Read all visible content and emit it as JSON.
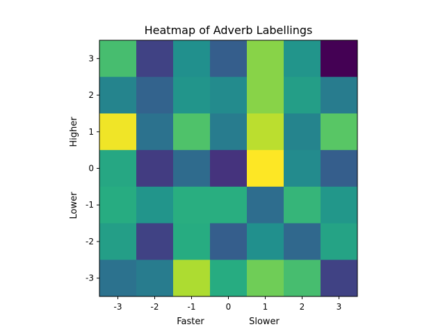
{
  "chart_data": {
    "type": "heatmap",
    "title": "Heatmap of Adverb Labellings",
    "xlabel_left": "Faster",
    "xlabel_right": "Slower",
    "ylabel_lower": "Lower",
    "ylabel_upper": "Higher",
    "colormap": "viridis",
    "x_ticks": [
      "-3",
      "-2",
      "-1",
      "0",
      "1",
      "2",
      "3"
    ],
    "y_ticks": [
      "3",
      "2",
      "1",
      "0",
      "-1",
      "-2",
      "-3"
    ],
    "grid": false,
    "value_range": [
      0,
      1
    ],
    "values": [
      [
        0.7,
        0.2,
        0.5,
        0.3,
        0.82,
        0.52,
        0.0
      ],
      [
        0.45,
        0.32,
        0.52,
        0.48,
        0.82,
        0.56,
        0.42
      ],
      [
        0.98,
        0.38,
        0.72,
        0.42,
        0.9,
        0.45,
        0.74
      ],
      [
        0.6,
        0.18,
        0.35,
        0.15,
        1.0,
        0.48,
        0.3
      ],
      [
        0.62,
        0.52,
        0.63,
        0.63,
        0.36,
        0.66,
        0.53
      ],
      [
        0.56,
        0.2,
        0.62,
        0.3,
        0.5,
        0.34,
        0.58
      ],
      [
        0.38,
        0.42,
        0.88,
        0.62,
        0.78,
        0.7,
        0.2
      ]
    ]
  }
}
